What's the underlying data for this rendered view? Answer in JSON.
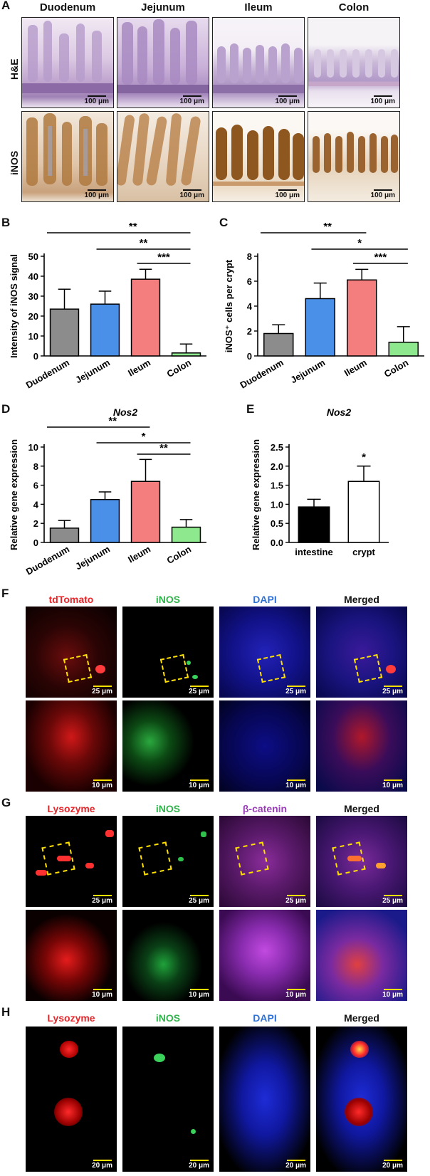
{
  "panel_labels": [
    "A",
    "B",
    "C",
    "D",
    "E",
    "F",
    "G",
    "H"
  ],
  "panel_a": {
    "columns": [
      "Duodenum",
      "Jejunum",
      "Ileum",
      "Colon"
    ],
    "rows": [
      "H&E",
      "iNOS"
    ],
    "scale_label": "100 μm"
  },
  "panel_f": {
    "columns": [
      "tdTomato",
      "iNOS",
      "DAPI",
      "Merged"
    ],
    "scale_top": "25 μm",
    "scale_bottom": "10 μm",
    "column_colors": [
      "#e8262a",
      "#2fb34a",
      "#2f72d6",
      "#111111"
    ]
  },
  "panel_g": {
    "columns": [
      "Lysozyme",
      "iNOS",
      "β-catenin",
      "Merged"
    ],
    "scale_top": "25 μm",
    "scale_bottom": "10 μm",
    "column_colors": [
      "#e8262a",
      "#2fb34a",
      "#9a3db8",
      "#111111"
    ]
  },
  "panel_h": {
    "columns": [
      "Lysozyme",
      "iNOS",
      "DAPI",
      "Merged"
    ],
    "scale": "20 μm",
    "column_colors": [
      "#e8262a",
      "#2fb34a",
      "#2f72d6",
      "#111111"
    ]
  },
  "chart_data": [
    {
      "panel": "B",
      "type": "bar",
      "categories": [
        "Duodenum",
        "Jejunum",
        "Ileum",
        "Colon"
      ],
      "values": [
        23.5,
        26,
        38.5,
        1.5
      ],
      "errors": [
        10,
        6.5,
        5,
        4.5
      ],
      "colors": [
        "#8c8c8c",
        "#4a90e8",
        "#f47d7d",
        "#8ee88e"
      ],
      "ylabel": "Intensity of iNOS signal",
      "ylim": [
        0,
        50
      ],
      "yticks": [
        0,
        10,
        20,
        30,
        40,
        50
      ],
      "significance": [
        {
          "from": 0,
          "to": 3,
          "label": "**"
        },
        {
          "from": 1,
          "to": 3,
          "label": "**"
        },
        {
          "from": 2,
          "to": 3,
          "label": "***"
        }
      ]
    },
    {
      "panel": "C",
      "type": "bar",
      "categories": [
        "Duodenum",
        "Jejunum",
        "Ileum",
        "Colon"
      ],
      "values": [
        1.8,
        4.6,
        6.1,
        1.1
      ],
      "errors": [
        0.7,
        1.25,
        0.85,
        1.25
      ],
      "colors": [
        "#8c8c8c",
        "#4a90e8",
        "#f47d7d",
        "#8ee88e"
      ],
      "ylabel": "iNOS⁺ cells per crypt",
      "ylim": [
        0,
        8
      ],
      "yticks": [
        0,
        2,
        4,
        6,
        8
      ],
      "significance": [
        {
          "from": 0,
          "to": 2,
          "label": "**"
        },
        {
          "from": 1,
          "to": 3,
          "label": "*"
        },
        {
          "from": 2,
          "to": 3,
          "label": "***"
        }
      ]
    },
    {
      "panel": "D",
      "type": "bar",
      "title": "Nos2",
      "categories": [
        "Duodenum",
        "Jejunum",
        "Ileum",
        "Colon"
      ],
      "values": [
        1.5,
        4.5,
        6.4,
        1.6
      ],
      "errors": [
        0.8,
        0.8,
        2.3,
        0.8
      ],
      "colors": [
        "#8c8c8c",
        "#4a90e8",
        "#f47d7d",
        "#8ee88e"
      ],
      "ylabel": "Relative gene expression",
      "ylim": [
        0,
        10
      ],
      "yticks": [
        0,
        2,
        4,
        6,
        8,
        10
      ],
      "significance": [
        {
          "from": 0,
          "to": 2,
          "label": "**"
        },
        {
          "from": 1,
          "to": 3,
          "label": "*"
        },
        {
          "from": 2,
          "to": 3,
          "label": "**"
        }
      ]
    },
    {
      "panel": "E",
      "type": "bar",
      "title": "Nos2",
      "categories": [
        "intestine",
        "crypt"
      ],
      "values": [
        0.93,
        1.6
      ],
      "errors": [
        0.2,
        0.4
      ],
      "colors": [
        "#000000",
        "#ffffff"
      ],
      "ylabel": "Relative gene expression",
      "ylim": [
        0,
        2.5
      ],
      "yticks": [
        0.0,
        0.5,
        1.0,
        1.5,
        2.0,
        2.5
      ],
      "tick_labels": [
        "0.0",
        "0.5",
        "1.0",
        "1.5",
        "2.0",
        "2.5"
      ],
      "significance": [
        {
          "over": 1,
          "label": "*"
        }
      ]
    }
  ]
}
